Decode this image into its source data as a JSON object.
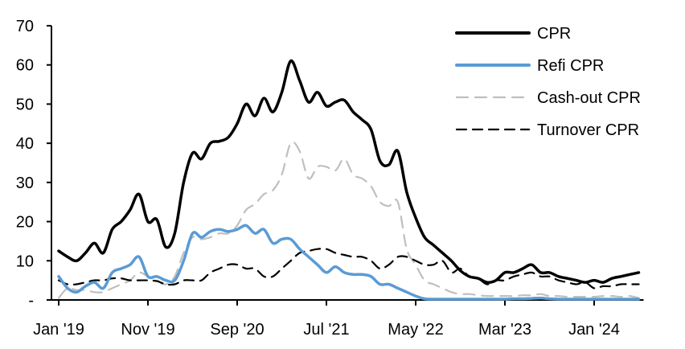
{
  "chart_data": {
    "type": "line",
    "title": "",
    "xlabel": "",
    "ylabel": "",
    "ylim": [
      0,
      70
    ],
    "yticks": [
      0,
      10,
      20,
      30,
      40,
      50,
      60,
      70
    ],
    "ytick_labels": [
      "-",
      "10",
      "20",
      "30",
      "40",
      "50",
      "60",
      "70"
    ],
    "x_start": "2019-01",
    "x_frequency": "monthly",
    "xtick_labels": [
      "Jan '19",
      "Nov '19",
      "Sep '20",
      "Jul '21",
      "May '22",
      "Mar '23",
      "Jan '24"
    ],
    "xtick_month_index": [
      0,
      10,
      20,
      30,
      40,
      50,
      60
    ],
    "grid": false,
    "legend": "top-right",
    "series": [
      {
        "name": "CPR",
        "color": "#000000",
        "style": "solid",
        "values": [
          12.5,
          11,
          10,
          12,
          14.5,
          12,
          18,
          20,
          23,
          27,
          20,
          20.5,
          13.5,
          17,
          30,
          37.5,
          36,
          40,
          40.5,
          41.5,
          45,
          50,
          47,
          51.5,
          48,
          53,
          61,
          56,
          50.5,
          53,
          49.5,
          50.5,
          51,
          48,
          46,
          43.5,
          35.5,
          34.5,
          38,
          27.5,
          21,
          16,
          14,
          12,
          10,
          7.5,
          6,
          5.5,
          4.5,
          5,
          7,
          7,
          8,
          9,
          7,
          7,
          6,
          5.5,
          5,
          4.5,
          5,
          4.5,
          5.5,
          6,
          6.5,
          7
        ]
      },
      {
        "name": "Refi CPR",
        "color": "#5B9BD5",
        "style": "solid",
        "values": [
          6,
          3,
          2,
          3.5,
          4.5,
          3,
          7,
          8,
          9,
          11,
          6,
          6,
          5,
          5,
          10,
          17,
          16,
          17.5,
          18,
          17.5,
          18,
          19,
          17,
          18,
          14.5,
          15.5,
          15.5,
          13,
          11,
          9,
          7,
          8.5,
          7,
          6.5,
          6.5,
          6,
          4,
          4,
          3,
          2,
          1,
          0.3,
          0.2,
          0.2,
          0.2,
          0.2,
          0.2,
          0.2,
          0.2,
          0.2,
          0.2,
          0.3,
          0.3,
          0.4,
          0.5,
          0.3,
          0.2,
          0.2,
          0.2,
          0.2,
          0.2,
          0.2,
          0.2,
          0.2,
          0.2,
          0.2
        ]
      },
      {
        "name": "Cash-out CPR",
        "color": "#BFBFBF",
        "style": "dashed",
        "values": [
          0.5,
          3,
          2.5,
          2.5,
          2,
          2,
          3,
          4,
          5,
          7,
          6,
          5,
          4,
          6,
          12,
          16,
          15.5,
          16,
          17,
          17,
          19,
          23,
          24.5,
          27,
          28,
          32,
          40,
          38,
          31,
          34,
          34,
          33,
          36,
          32,
          31,
          29,
          25,
          24,
          25,
          13,
          9,
          5,
          4,
          3,
          2,
          1.5,
          1.5,
          1.2,
          1,
          1,
          1,
          1,
          1.2,
          1.2,
          1.5,
          1,
          1,
          0.8,
          0.8,
          0.8,
          0.8,
          1,
          1,
          0.8,
          1,
          0.5
        ]
      },
      {
        "name": "Turnover CPR",
        "color": "#000000",
        "style": "dashed",
        "values": [
          5,
          4,
          4,
          4.5,
          5,
          5,
          5.5,
          5.5,
          5,
          5,
          5,
          4.8,
          4,
          4,
          5,
          5,
          5,
          7,
          8,
          9,
          9,
          8,
          8,
          6,
          6,
          8,
          10,
          12,
          12.5,
          13,
          13,
          12,
          11.5,
          11,
          11,
          10,
          8,
          9,
          11,
          11,
          10,
          9,
          9,
          10,
          7,
          8,
          6,
          5.5,
          4,
          5,
          5,
          6,
          6.5,
          7,
          6,
          6,
          5,
          4.5,
          4,
          4.5,
          3,
          3.5,
          3.5,
          4,
          4,
          4
        ]
      }
    ]
  }
}
